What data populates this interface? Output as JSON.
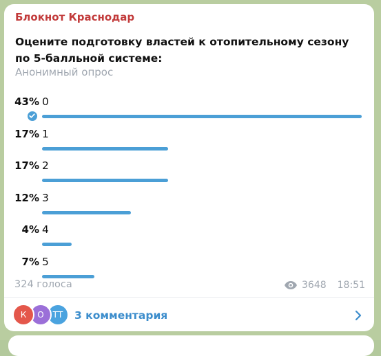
{
  "post": {
    "channel_name": "Блокнот Краснодар",
    "question": "Оцените подготовку властей к отопительному сезону по 5-балльной системе:",
    "poll_type": "Анонимный опрос",
    "options": [
      {
        "percent": "43%",
        "label": "0",
        "value": 43,
        "voted": true
      },
      {
        "percent": "17%",
        "label": "1",
        "value": 17,
        "voted": false
      },
      {
        "percent": "17%",
        "label": "2",
        "value": 17,
        "voted": false
      },
      {
        "percent": "12%",
        "label": "3",
        "value": 12,
        "voted": false
      },
      {
        "percent": "4%",
        "label": "4",
        "value": 4,
        "voted": false
      },
      {
        "percent": "7%",
        "label": "5",
        "value": 7,
        "voted": false
      }
    ],
    "total_votes": "324 голоса",
    "views": "3648",
    "time": "18:51"
  },
  "comments": {
    "label": "3 комментария",
    "avatars": [
      {
        "initial": "К",
        "color": "#e4574b"
      },
      {
        "initial": "О",
        "color": "#9b6fd8"
      },
      {
        "initial": "ТТ",
        "color": "#4aa3df"
      }
    ]
  },
  "colors": {
    "accent": "#4b9fd6",
    "channel": "#c23b3b",
    "link": "#3c8dcc"
  }
}
